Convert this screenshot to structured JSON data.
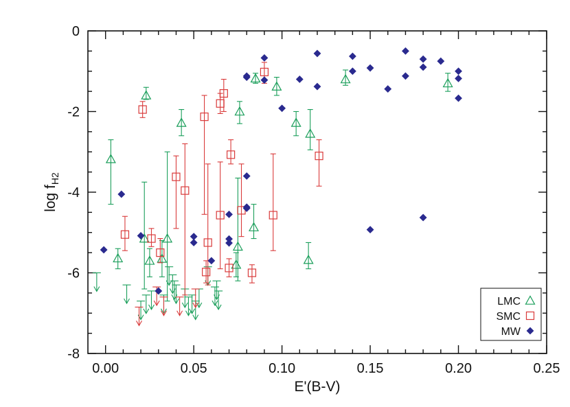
{
  "chart_data": {
    "type": "scatter",
    "xlabel": "E'(B-V)",
    "ylabel": {
      "main": "log f",
      "sub": "H2"
    },
    "xlim": [
      -0.01,
      0.25
    ],
    "ylim": [
      -8,
      0
    ],
    "x_ticks": [
      {
        "value": 0.0,
        "label": "0.00"
      },
      {
        "value": 0.05,
        "label": "0.05"
      },
      {
        "value": 0.1,
        "label": "0.10"
      },
      {
        "value": 0.15,
        "label": "0.15"
      },
      {
        "value": 0.2,
        "label": "0.20"
      },
      {
        "value": 0.25,
        "label": "0.25"
      }
    ],
    "y_ticks": [
      {
        "value": 0,
        "label": "0"
      },
      {
        "value": -2,
        "label": "-2"
      },
      {
        "value": -4,
        "label": "-4"
      },
      {
        "value": -6,
        "label": "-6"
      },
      {
        "value": -8,
        "label": "-8"
      }
    ],
    "grid": false,
    "legend_position": "bottom-right",
    "series": [
      {
        "name": "LMC",
        "marker": "open-triangle",
        "color": "#1a9e5a",
        "points": [
          {
            "x": 0.003,
            "y": -3.18,
            "lo": -4.3,
            "hi": -2.7
          },
          {
            "x": 0.007,
            "y": -5.64,
            "lo": -5.9,
            "hi": -5.4
          },
          {
            "x": 0.023,
            "y": -1.6,
            "lo": -1.7,
            "hi": -1.4
          },
          {
            "x": 0.022,
            "y": -5.15,
            "lo": -6.4,
            "hi": -3.75
          },
          {
            "x": 0.025,
            "y": -5.7,
            "lo": -6.1,
            "hi": -5.4
          },
          {
            "x": 0.032,
            "y": -5.65,
            "lo": -6.1,
            "hi": -5.2
          },
          {
            "x": 0.035,
            "y": -5.15,
            "lo": -6.7,
            "hi": -3.0
          },
          {
            "x": 0.043,
            "y": -2.28,
            "lo": -2.6,
            "hi": -1.95
          },
          {
            "x": 0.075,
            "y": -5.35,
            "lo": -6.2,
            "hi": -3.65
          },
          {
            "x": 0.074,
            "y": -5.8,
            "lo": -6.1,
            "hi": -5.5
          },
          {
            "x": 0.076,
            "y": -2.0,
            "lo": -2.3,
            "hi": -1.75
          },
          {
            "x": 0.084,
            "y": -4.87,
            "lo": -5.15,
            "hi": -4.3
          },
          {
            "x": 0.085,
            "y": -1.18,
            "lo": -1.3,
            "hi": -1.05
          },
          {
            "x": 0.097,
            "y": -1.38,
            "lo": -1.6,
            "hi": -1.15
          },
          {
            "x": 0.108,
            "y": -2.28,
            "lo": -2.6,
            "hi": -2.0
          },
          {
            "x": 0.116,
            "y": -2.55,
            "lo": -2.95,
            "hi": -1.95
          },
          {
            "x": 0.115,
            "y": -5.68,
            "lo": -5.9,
            "hi": -5.25
          },
          {
            "x": 0.136,
            "y": -1.2,
            "lo": -1.35,
            "hi": -0.97
          },
          {
            "x": 0.194,
            "y": -1.3,
            "lo": -1.5,
            "hi": -1.05
          }
        ],
        "upper_limits": [
          {
            "x": -0.005,
            "y": -6.0
          },
          {
            "x": 0.012,
            "y": -6.3
          },
          {
            "x": 0.02,
            "y": -6.7
          },
          {
            "x": 0.023,
            "y": -6.55
          },
          {
            "x": 0.026,
            "y": -6.45
          },
          {
            "x": 0.033,
            "y": -6.55
          },
          {
            "x": 0.036,
            "y": -5.85
          },
          {
            "x": 0.038,
            "y": -6.05
          },
          {
            "x": 0.039,
            "y": -6.2
          },
          {
            "x": 0.04,
            "y": -6.3
          },
          {
            "x": 0.045,
            "y": -6.4
          },
          {
            "x": 0.047,
            "y": -6.6
          },
          {
            "x": 0.049,
            "y": -6.55
          },
          {
            "x": 0.051,
            "y": -6.7
          },
          {
            "x": 0.053,
            "y": -6.4
          },
          {
            "x": 0.058,
            "y": -5.85
          },
          {
            "x": 0.062,
            "y": -6.35
          },
          {
            "x": 0.063,
            "y": -6.2
          },
          {
            "x": 0.064,
            "y": -6.45
          }
        ]
      },
      {
        "name": "SMC",
        "marker": "open-square",
        "color": "#d93a3a",
        "points": [
          {
            "x": 0.011,
            "y": -5.05,
            "lo": -5.45,
            "hi": -4.6
          },
          {
            "x": 0.021,
            "y": -1.95,
            "lo": -2.15,
            "hi": -1.75
          },
          {
            "x": 0.026,
            "y": -5.15,
            "lo": -5.35,
            "hi": -4.9
          },
          {
            "x": 0.031,
            "y": -5.5,
            "lo": -5.75,
            "hi": -5.15
          },
          {
            "x": 0.04,
            "y": -3.62,
            "lo": -4.9,
            "hi": -3.1
          },
          {
            "x": 0.045,
            "y": -3.96,
            "lo": -6.55,
            "hi": -2.8
          },
          {
            "x": 0.056,
            "y": -2.13,
            "lo": -4.55,
            "hi": -1.6
          },
          {
            "x": 0.058,
            "y": -5.25,
            "lo": -6.3,
            "hi": -3.3
          },
          {
            "x": 0.065,
            "y": -1.8,
            "lo": -2.05,
            "hi": -1.55
          },
          {
            "x": 0.065,
            "y": -4.57,
            "lo": -5.9,
            "hi": -3.25
          },
          {
            "x": 0.067,
            "y": -1.55,
            "lo": -2.0,
            "hi": -1.2
          },
          {
            "x": 0.071,
            "y": -3.07,
            "lo": -3.3,
            "hi": -2.7
          },
          {
            "x": 0.077,
            "y": -4.45,
            "lo": -5.1,
            "hi": -3.3
          },
          {
            "x": 0.09,
            "y": -1.02,
            "lo": -1.3,
            "hi": -0.78
          },
          {
            "x": 0.095,
            "y": -4.57,
            "lo": -5.45,
            "hi": -3.05
          },
          {
            "x": 0.121,
            "y": -3.1,
            "lo": -3.85,
            "hi": -2.7
          },
          {
            "x": 0.057,
            "y": -5.98,
            "lo": -6.25,
            "hi": -5.7
          },
          {
            "x": 0.07,
            "y": -5.88,
            "lo": -6.1,
            "hi": -5.65
          },
          {
            "x": 0.083,
            "y": -6.0,
            "lo": -6.25,
            "hi": -5.8
          }
        ],
        "upper_limits": [
          {
            "x": 0.019,
            "y": -6.85
          },
          {
            "x": 0.029,
            "y": -6.35
          },
          {
            "x": 0.033,
            "y": -6.6
          },
          {
            "x": 0.042,
            "y": -6.6
          },
          {
            "x": 0.051,
            "y": -6.4
          }
        ]
      },
      {
        "name": "MW",
        "marker": "filled-diamond",
        "color": "#2a2a8f",
        "points": [
          {
            "x": -0.001,
            "y": -5.43
          },
          {
            "x": 0.009,
            "y": -4.05
          },
          {
            "x": 0.02,
            "y": -5.08
          },
          {
            "x": 0.03,
            "y": -6.45
          },
          {
            "x": 0.05,
            "y": -5.1
          },
          {
            "x": 0.05,
            "y": -5.25
          },
          {
            "x": 0.06,
            "y": -5.7
          },
          {
            "x": 0.07,
            "y": -4.55
          },
          {
            "x": 0.07,
            "y": -5.16
          },
          {
            "x": 0.07,
            "y": -5.26
          },
          {
            "x": 0.08,
            "y": -1.15
          },
          {
            "x": 0.08,
            "y": -1.12
          },
          {
            "x": 0.08,
            "y": -3.6
          },
          {
            "x": 0.08,
            "y": -4.37
          },
          {
            "x": 0.08,
            "y": -4.4
          },
          {
            "x": 0.09,
            "y": -0.67
          },
          {
            "x": 0.09,
            "y": -1.22
          },
          {
            "x": 0.1,
            "y": -1.92
          },
          {
            "x": 0.11,
            "y": -1.2
          },
          {
            "x": 0.12,
            "y": -0.56
          },
          {
            "x": 0.12,
            "y": -1.38
          },
          {
            "x": 0.14,
            "y": -0.63
          },
          {
            "x": 0.14,
            "y": -1.0
          },
          {
            "x": 0.15,
            "y": -0.92
          },
          {
            "x": 0.15,
            "y": -4.93
          },
          {
            "x": 0.16,
            "y": -1.44
          },
          {
            "x": 0.17,
            "y": -0.5
          },
          {
            "x": 0.17,
            "y": -1.12
          },
          {
            "x": 0.18,
            "y": -0.7
          },
          {
            "x": 0.18,
            "y": -0.9
          },
          {
            "x": 0.18,
            "y": -4.63
          },
          {
            "x": 0.19,
            "y": -0.75
          },
          {
            "x": 0.2,
            "y": -1.0
          },
          {
            "x": 0.2,
            "y": -1.18
          },
          {
            "x": 0.2,
            "y": -1.67
          }
        ]
      }
    ],
    "legend": [
      {
        "label": "LMC",
        "marker": "open-triangle",
        "color": "#1a9e5a"
      },
      {
        "label": "SMC",
        "marker": "open-square",
        "color": "#d93a3a"
      },
      {
        "label": "MW",
        "marker": "filled-diamond",
        "color": "#2a2a8f"
      }
    ]
  }
}
